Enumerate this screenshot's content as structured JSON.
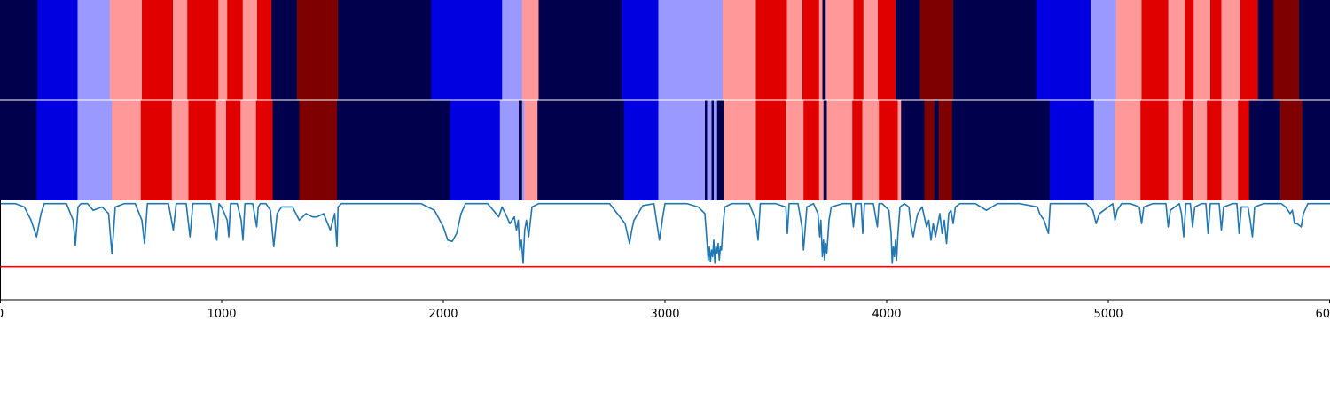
{
  "chart_data": {
    "type": "heatmap",
    "title": "",
    "xlabel": "",
    "ylabel": "",
    "xlim": [
      0,
      6000
    ],
    "x_ticks": [
      0,
      1000,
      2000,
      3000,
      4000,
      5000,
      6000
    ],
    "x_tick_labels": [
      "0",
      "1000",
      "2000",
      "3000",
      "4000",
      "5000",
      "6000"
    ],
    "grid": false,
    "legend": "none",
    "colors": {
      "state_palette": {
        "0": "#00004c",
        "1": "#0000e0",
        "2": "#9999ff",
        "3": "#ff9999",
        "4": "#e00000",
        "5": "#7f0000"
      },
      "line": "#1f77b4",
      "threshold": "#ff0000",
      "separator": "#ffffff"
    },
    "tracks": [
      {
        "name": "",
        "segments": [
          [
            0,
            170,
            0
          ],
          [
            170,
            350,
            1
          ],
          [
            350,
            495,
            2
          ],
          [
            495,
            640,
            3
          ],
          [
            640,
            780,
            4
          ],
          [
            780,
            845,
            3
          ],
          [
            845,
            985,
            4
          ],
          [
            985,
            1025,
            3
          ],
          [
            1025,
            1095,
            4
          ],
          [
            1095,
            1160,
            3
          ],
          [
            1160,
            1225,
            4
          ],
          [
            1225,
            1340,
            0
          ],
          [
            1340,
            1525,
            5
          ],
          [
            1525,
            1945,
            0
          ],
          [
            1945,
            2265,
            1
          ],
          [
            2265,
            2355,
            2
          ],
          [
            2355,
            2430,
            3
          ],
          [
            2430,
            2805,
            0
          ],
          [
            2805,
            2970,
            1
          ],
          [
            2970,
            3260,
            2
          ],
          [
            3260,
            3410,
            3
          ],
          [
            3410,
            3550,
            4
          ],
          [
            3550,
            3620,
            3
          ],
          [
            3620,
            3695,
            4
          ],
          [
            3695,
            3710,
            3
          ],
          [
            3710,
            3725,
            0
          ],
          [
            3725,
            3745,
            3
          ],
          [
            3745,
            3850,
            3
          ],
          [
            3850,
            3895,
            4
          ],
          [
            3895,
            3960,
            3
          ],
          [
            3960,
            4040,
            4
          ],
          [
            4040,
            4150,
            0
          ],
          [
            4150,
            4300,
            5
          ],
          [
            4300,
            4675,
            0
          ],
          [
            4675,
            4920,
            1
          ],
          [
            4920,
            5035,
            2
          ],
          [
            5035,
            5150,
            3
          ],
          [
            5150,
            5270,
            4
          ],
          [
            5270,
            5345,
            3
          ],
          [
            5345,
            5385,
            4
          ],
          [
            5385,
            5460,
            3
          ],
          [
            5460,
            5510,
            4
          ],
          [
            5510,
            5595,
            3
          ],
          [
            5595,
            5675,
            4
          ],
          [
            5675,
            5745,
            0
          ],
          [
            5745,
            5860,
            5
          ],
          [
            5860,
            6000,
            0
          ]
        ]
      },
      {
        "name": "",
        "segments": [
          [
            0,
            165,
            0
          ],
          [
            165,
            350,
            1
          ],
          [
            350,
            505,
            2
          ],
          [
            505,
            635,
            3
          ],
          [
            635,
            775,
            4
          ],
          [
            775,
            850,
            3
          ],
          [
            850,
            975,
            4
          ],
          [
            975,
            1020,
            3
          ],
          [
            1020,
            1085,
            4
          ],
          [
            1085,
            1155,
            3
          ],
          [
            1155,
            1230,
            4
          ],
          [
            1230,
            1350,
            0
          ],
          [
            1350,
            1520,
            5
          ],
          [
            1520,
            2030,
            0
          ],
          [
            2030,
            2255,
            1
          ],
          [
            2255,
            2340,
            2
          ],
          [
            2340,
            2355,
            0
          ],
          [
            2355,
            2365,
            2
          ],
          [
            2365,
            2425,
            3
          ],
          [
            2425,
            2815,
            0
          ],
          [
            2815,
            2970,
            1
          ],
          [
            2970,
            3180,
            2
          ],
          [
            3180,
            3190,
            0
          ],
          [
            3190,
            3210,
            2
          ],
          [
            3210,
            3220,
            0
          ],
          [
            3220,
            3235,
            2
          ],
          [
            3235,
            3265,
            0
          ],
          [
            3265,
            3410,
            3
          ],
          [
            3410,
            3545,
            4
          ],
          [
            3545,
            3625,
            3
          ],
          [
            3625,
            3695,
            4
          ],
          [
            3695,
            3715,
            3
          ],
          [
            3715,
            3730,
            0
          ],
          [
            3730,
            3845,
            3
          ],
          [
            3845,
            3890,
            4
          ],
          [
            3890,
            3965,
            3
          ],
          [
            3965,
            4050,
            4
          ],
          [
            4050,
            4065,
            3
          ],
          [
            4065,
            4170,
            0
          ],
          [
            4170,
            4215,
            5
          ],
          [
            4215,
            4235,
            0
          ],
          [
            4235,
            4295,
            5
          ],
          [
            4295,
            4735,
            0
          ],
          [
            4735,
            4935,
            1
          ],
          [
            4935,
            5030,
            2
          ],
          [
            5030,
            5145,
            3
          ],
          [
            5145,
            5270,
            4
          ],
          [
            5270,
            5335,
            3
          ],
          [
            5335,
            5380,
            4
          ],
          [
            5380,
            5445,
            3
          ],
          [
            5445,
            5510,
            4
          ],
          [
            5510,
            5585,
            3
          ],
          [
            5585,
            5635,
            4
          ],
          [
            5635,
            5775,
            0
          ],
          [
            5775,
            5875,
            5
          ],
          [
            5875,
            6000,
            0
          ]
        ]
      }
    ],
    "series": [
      {
        "name": "",
        "x": [
          0,
          70,
          110,
          140,
          165,
          185,
          200,
          240,
          300,
          330,
          340,
          352,
          365,
          395,
          420,
          460,
          490,
          505,
          520,
          560,
          610,
          640,
          652,
          665,
          700,
          760,
          782,
          795,
          840,
          857,
          870,
          900,
          950,
          978,
          988,
          1000,
          1025,
          1032,
          1040,
          1070,
          1088,
          1096,
          1105,
          1140,
          1158,
          1165,
          1175,
          1200,
          1220,
          1235,
          1250,
          1270,
          1290,
          1320,
          1350,
          1380,
          1410,
          1430,
          1460,
          1490,
          1510,
          1520,
          1525,
          1540,
          1650,
          1800,
          1900,
          1960,
          2000,
          2020,
          2040,
          2060,
          2080,
          2100,
          2150,
          2200,
          2250,
          2265,
          2280,
          2300,
          2320,
          2330,
          2338,
          2345,
          2352,
          2360,
          2367,
          2375,
          2385,
          2400,
          2430,
          2470,
          2600,
          2750,
          2820,
          2840,
          2850,
          2860,
          2900,
          2950,
          2975,
          2990,
          3000,
          3100,
          3150,
          3180,
          3190,
          3195,
          3200,
          3205,
          3210,
          3215,
          3220,
          3225,
          3230,
          3235,
          3240,
          3245,
          3250,
          3255,
          3260,
          3270,
          3300,
          3380,
          3410,
          3420,
          3430,
          3500,
          3545,
          3552,
          3560,
          3600,
          3618,
          3625,
          3640,
          3670,
          3690,
          3698,
          3703,
          3710,
          3715,
          3720,
          3725,
          3730,
          3735,
          3740,
          3750,
          3800,
          3840,
          3850,
          3860,
          3885,
          3892,
          3900,
          3940,
          3958,
          3965,
          3980,
          4010,
          4020,
          4025,
          4030,
          4035,
          4040,
          4045,
          4050,
          4060,
          4080,
          4100,
          4110,
          4120,
          4130,
          4140,
          4160,
          4180,
          4190,
          4200,
          4210,
          4220,
          4240,
          4250,
          4260,
          4270,
          4280,
          4290,
          4300,
          4310,
          4330,
          4350,
          4400,
          4450,
          4500,
          4550,
          4600,
          4680,
          4690,
          4710,
          4730,
          4738,
          4760,
          4800,
          4850,
          4900,
          4930,
          4945,
          4960,
          5020,
          5030,
          5040,
          5060,
          5100,
          5140,
          5150,
          5160,
          5200,
          5260,
          5270,
          5280,
          5320,
          5330,
          5340,
          5350,
          5370,
          5380,
          5390,
          5420,
          5440,
          5450,
          5460,
          5500,
          5510,
          5520,
          5560,
          5580,
          5590,
          5600,
          5630,
          5640,
          5650,
          5660,
          5700,
          5740,
          5780,
          5800,
          5820,
          5830,
          5840,
          5850,
          5870,
          5880,
          5900,
          5950,
          6000
        ],
        "y": [
          0.05,
          0.05,
          0.1,
          0.3,
          0.55,
          0.2,
          0.05,
          0.05,
          0.05,
          0.3,
          0.68,
          0.1,
          0.05,
          0.05,
          0.15,
          0.1,
          0.2,
          0.81,
          0.1,
          0.05,
          0.05,
          0.3,
          0.65,
          0.05,
          0.05,
          0.05,
          0.45,
          0.05,
          0.05,
          0.55,
          0.05,
          0.05,
          0.05,
          0.6,
          0.05,
          0.1,
          0.3,
          0.55,
          0.05,
          0.05,
          0.3,
          0.6,
          0.05,
          0.05,
          0.4,
          0.1,
          0.05,
          0.05,
          0.15,
          0.7,
          0.2,
          0.1,
          0.1,
          0.1,
          0.3,
          0.2,
          0.25,
          0.25,
          0.2,
          0.45,
          0.2,
          0.7,
          0.1,
          0.05,
          0.05,
          0.05,
          0.05,
          0.15,
          0.4,
          0.6,
          0.62,
          0.5,
          0.2,
          0.05,
          0.05,
          0.05,
          0.25,
          0.1,
          0.2,
          0.35,
          0.25,
          0.45,
          0.3,
          0.75,
          0.6,
          0.95,
          0.45,
          0.3,
          0.55,
          0.1,
          0.05,
          0.05,
          0.05,
          0.05,
          0.35,
          0.65,
          0.45,
          0.3,
          0.08,
          0.05,
          0.6,
          0.25,
          0.05,
          0.05,
          0.1,
          0.2,
          0.65,
          0.9,
          0.7,
          0.92,
          0.75,
          0.85,
          0.6,
          0.95,
          0.7,
          0.8,
          0.65,
          0.9,
          0.7,
          0.75,
          0.45,
          0.1,
          0.05,
          0.05,
          0.3,
          0.6,
          0.05,
          0.05,
          0.1,
          0.5,
          0.05,
          0.05,
          0.4,
          0.75,
          0.1,
          0.05,
          0.2,
          0.55,
          0.3,
          0.85,
          0.6,
          0.9,
          0.65,
          0.8,
          0.55,
          0.3,
          0.1,
          0.05,
          0.05,
          0.4,
          0.05,
          0.05,
          0.5,
          0.05,
          0.05,
          0.4,
          0.05,
          0.05,
          0.15,
          0.5,
          0.95,
          0.7,
          0.85,
          0.6,
          0.9,
          0.55,
          0.1,
          0.05,
          0.1,
          0.4,
          0.55,
          0.35,
          0.2,
          0.1,
          0.4,
          0.3,
          0.6,
          0.35,
          0.55,
          0.2,
          0.5,
          0.3,
          0.65,
          0.2,
          0.15,
          0.35,
          0.1,
          0.05,
          0.05,
          0.05,
          0.15,
          0.05,
          0.05,
          0.05,
          0.1,
          0.2,
          0.3,
          0.5,
          0.05,
          0.05,
          0.05,
          0.05,
          0.05,
          0.15,
          0.35,
          0.2,
          0.05,
          0.3,
          0.15,
          0.05,
          0.05,
          0.1,
          0.35,
          0.1,
          0.05,
          0.05,
          0.4,
          0.15,
          0.05,
          0.2,
          0.55,
          0.05,
          0.05,
          0.4,
          0.1,
          0.05,
          0.05,
          0.5,
          0.05,
          0.05,
          0.45,
          0.1,
          0.05,
          0.05,
          0.5,
          0.1,
          0.1,
          0.3,
          0.55,
          0.1,
          0.05,
          0.05,
          0.05,
          0.1,
          0.2,
          0.15,
          0.35,
          0.35,
          0.4,
          0.2,
          0.05,
          0.05,
          0.05
        ],
        "ylim": [
          0,
          1.5
        ],
        "y_inverted": true
      }
    ],
    "threshold": 1.0
  }
}
